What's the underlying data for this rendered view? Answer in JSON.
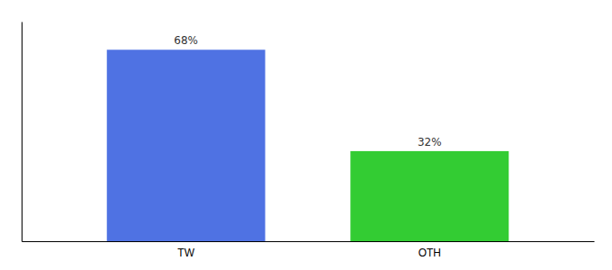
{
  "chart_data": {
    "type": "bar",
    "categories": [
      "TW",
      "OTH"
    ],
    "values": [
      68,
      32
    ],
    "value_labels": [
      "68%",
      "32%"
    ],
    "colors": [
      "#4f72e3",
      "#33cc33"
    ],
    "ylim": [
      0,
      78
    ],
    "data_labels": true,
    "tick_labels": "x"
  }
}
